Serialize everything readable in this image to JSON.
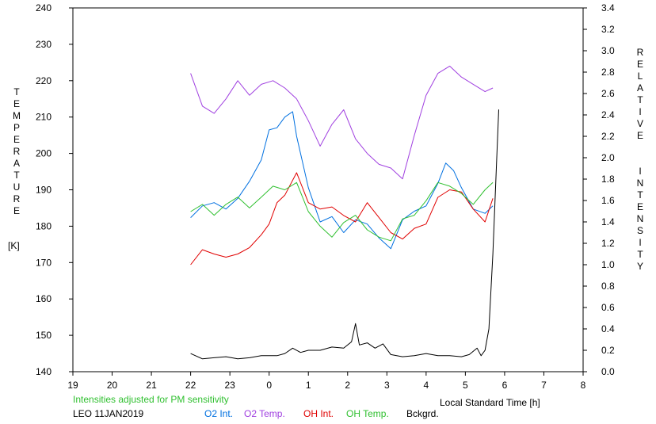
{
  "chart_data": {
    "type": "line",
    "x_axis": {
      "label": "Local Standard Time [h]",
      "range": [
        19,
        32
      ],
      "ticks": [
        19,
        20,
        21,
        22,
        23,
        24,
        25,
        26,
        27,
        28,
        29,
        30,
        31,
        32
      ],
      "tick_labels": [
        "19",
        "20",
        "21",
        "22",
        "23",
        "0",
        "1",
        "2",
        "3",
        "4",
        "5",
        "6",
        "7",
        "8"
      ]
    },
    "y_left": {
      "label_letters": [
        "T",
        "E",
        "M",
        "P",
        "E",
        "R",
        "A",
        "T",
        "U",
        "R",
        "E"
      ],
      "unit": "[K]",
      "range": [
        140,
        240
      ],
      "ticks": [
        140,
        150,
        160,
        170,
        180,
        190,
        200,
        210,
        220,
        230,
        240
      ]
    },
    "y_right": {
      "label_letters_1": [
        "R",
        "E",
        "L",
        "A",
        "T",
        "I",
        "V",
        "E"
      ],
      "label_letters_2": [
        "I",
        "N",
        "T",
        "E",
        "N",
        "S",
        "I",
        "T",
        "Y"
      ],
      "range": [
        0,
        3.4
      ],
      "ticks": [
        "0.0",
        "0.2",
        "0.4",
        "0.6",
        "0.8",
        "1.0",
        "1.2",
        "1.4",
        "1.6",
        "1.8",
        "2.0",
        "2.2",
        "2.4",
        "2.6",
        "2.8",
        "3.0",
        "3.2",
        "3.4"
      ]
    },
    "note": "Intensities adjusted for PM sensitivity",
    "station": "LEO 11JAN2019",
    "legend": [
      {
        "name": "O2 Int.",
        "color": "#0070e0"
      },
      {
        "name": "O2 Temp.",
        "color": "#a040e0"
      },
      {
        "name": "OH Int.",
        "color": "#e00000"
      },
      {
        "name": "OH Temp.",
        "color": "#30c030"
      },
      {
        "name": "Bckgrd.",
        "color": "#000000"
      }
    ],
    "series": [
      {
        "name": "O2 Int.",
        "axis": "right",
        "color": "#0070e0",
        "x": [
          22.0,
          22.3,
          22.6,
          22.9,
          23.2,
          23.5,
          23.8,
          24.0,
          24.2,
          24.4,
          24.6,
          24.7,
          25.0,
          25.3,
          25.6,
          25.9,
          26.2,
          26.5,
          26.8,
          27.1,
          27.4,
          27.7,
          28.0,
          28.3,
          28.5,
          28.7,
          28.9,
          29.2,
          29.5,
          29.7
        ],
        "y": [
          1.44,
          1.55,
          1.58,
          1.52,
          1.62,
          1.78,
          1.98,
          2.26,
          2.28,
          2.38,
          2.43,
          2.2,
          1.72,
          1.4,
          1.45,
          1.3,
          1.42,
          1.38,
          1.25,
          1.15,
          1.42,
          1.5,
          1.55,
          1.76,
          1.95,
          1.88,
          1.72,
          1.52,
          1.48,
          1.55
        ]
      },
      {
        "name": "O2 Temp.",
        "axis": "left",
        "color": "#a040e0",
        "x": [
          22.0,
          22.3,
          22.6,
          22.9,
          23.2,
          23.5,
          23.8,
          24.1,
          24.4,
          24.7,
          25.0,
          25.3,
          25.6,
          25.9,
          26.2,
          26.5,
          26.8,
          27.1,
          27.4,
          27.7,
          28.0,
          28.3,
          28.6,
          28.9,
          29.2,
          29.5,
          29.7
        ],
        "y": [
          222,
          213,
          211,
          215,
          220,
          216,
          219,
          220,
          218,
          215,
          209,
          202,
          208,
          212,
          204,
          200,
          197,
          196,
          193,
          205,
          216,
          222,
          224,
          221,
          219,
          217,
          218
        ]
      },
      {
        "name": "OH Int.",
        "axis": "right",
        "color": "#e00000",
        "x": [
          22.0,
          22.3,
          22.6,
          22.9,
          23.2,
          23.5,
          23.8,
          24.0,
          24.2,
          24.4,
          24.7,
          25.0,
          25.3,
          25.6,
          25.9,
          26.2,
          26.5,
          26.8,
          27.1,
          27.4,
          27.7,
          28.0,
          28.3,
          28.6,
          28.9,
          29.2,
          29.5,
          29.7
        ],
        "y": [
          1.0,
          1.14,
          1.1,
          1.07,
          1.1,
          1.16,
          1.28,
          1.38,
          1.58,
          1.65,
          1.86,
          1.58,
          1.52,
          1.54,
          1.46,
          1.4,
          1.58,
          1.44,
          1.3,
          1.24,
          1.34,
          1.38,
          1.63,
          1.7,
          1.68,
          1.52,
          1.4,
          1.62
        ]
      },
      {
        "name": "OH Temp.",
        "axis": "left",
        "color": "#30c030",
        "x": [
          22.0,
          22.3,
          22.6,
          22.9,
          23.2,
          23.5,
          23.8,
          24.1,
          24.4,
          24.7,
          25.0,
          25.3,
          25.6,
          25.9,
          26.2,
          26.5,
          26.8,
          27.1,
          27.4,
          27.7,
          28.0,
          28.3,
          28.6,
          28.9,
          29.2,
          29.5,
          29.7
        ],
        "y": [
          184,
          186,
          183,
          186,
          188,
          185,
          188,
          191,
          190,
          192,
          184,
          180,
          177,
          181,
          183,
          179,
          177,
          176,
          182,
          183,
          187,
          192,
          191,
          189,
          186,
          190,
          192
        ]
      },
      {
        "name": "Bckgrd.",
        "axis": "right",
        "color": "#000000",
        "x": [
          22.0,
          22.3,
          22.6,
          22.9,
          23.2,
          23.5,
          23.8,
          24.2,
          24.4,
          24.6,
          24.8,
          25.0,
          25.3,
          25.6,
          25.9,
          26.1,
          26.2,
          26.3,
          26.5,
          26.7,
          26.9,
          27.1,
          27.4,
          27.7,
          28.0,
          28.3,
          28.6,
          28.9,
          29.1,
          29.3,
          29.4,
          29.5,
          29.6,
          29.7,
          29.8,
          29.85
        ],
        "y": [
          0.17,
          0.12,
          0.13,
          0.14,
          0.12,
          0.13,
          0.15,
          0.15,
          0.17,
          0.22,
          0.18,
          0.2,
          0.2,
          0.23,
          0.22,
          0.28,
          0.45,
          0.25,
          0.27,
          0.22,
          0.26,
          0.16,
          0.14,
          0.15,
          0.17,
          0.15,
          0.15,
          0.14,
          0.16,
          0.22,
          0.15,
          0.2,
          0.4,
          1.1,
          2.0,
          2.45
        ]
      }
    ]
  }
}
